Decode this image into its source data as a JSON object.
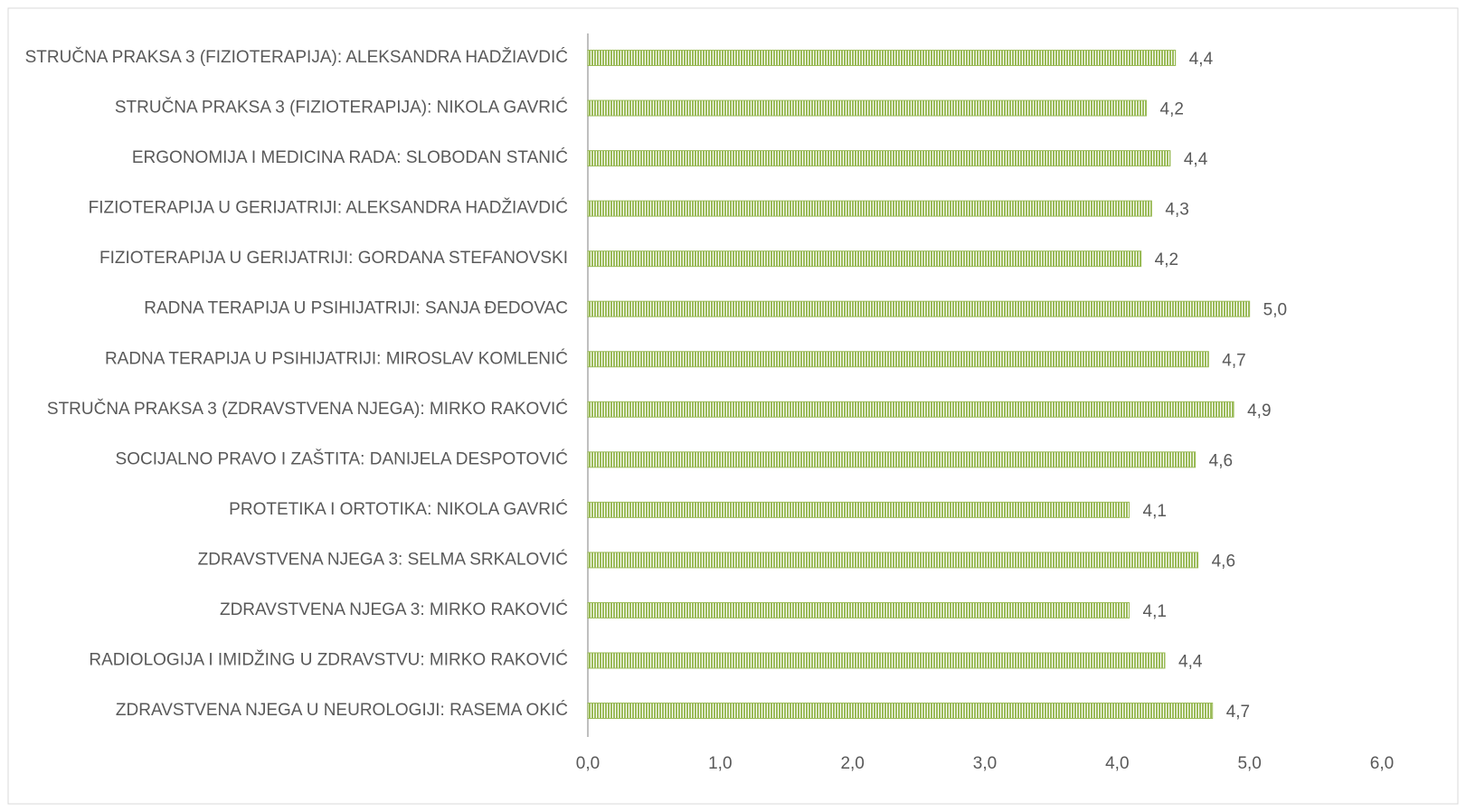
{
  "chart_data": {
    "type": "bar",
    "orientation": "horizontal",
    "categories": [
      "STRUČNA PRAKSA 3 (FIZIOTERAPIJA): ALEKSANDRA HADŽIAVDIĆ",
      "STRUČNA PRAKSA 3 (FIZIOTERAPIJA): NIKOLA GAVRIĆ",
      "ERGONOMIJA I MEDICINA RADA: SLOBODAN STANIĆ",
      "FIZIOTERAPIJA U GERIJATRIJI: ALEKSANDRA HADŽIAVDIĆ",
      "FIZIOTERAPIJA U GERIJATRIJI: GORDANA STEFANOVSKI",
      "RADNA TERAPIJA U PSIHIJATRIJI: SANJA ĐEDOVAC",
      "RADNA TERAPIJA U PSIHIJATRIJI: MIROSLAV KOMLENIĆ",
      "STRUČNA PRAKSA 3 (ZDRAVSTVENA NJEGA): MIRKO RAKOVIĆ",
      "SOCIJALNO PRAVO I ZAŠTITA: DANIJELA DESPOTOVIĆ",
      "PROTETIKA I ORTOTIKA: NIKOLA GAVRIĆ",
      "ZDRAVSTVENA NJEGA 3: SELMA SRKALOVIĆ",
      "ZDRAVSTVENA NJEGA 3: MIRKO RAKOVIĆ",
      "RADIOLOGIJA I IMIDŽING U ZDRAVSTVU: MIRKO RAKOVIĆ",
      "ZDRAVSTVENA NJEGA U NEUROLOGIJI: RASEMA OKIĆ"
    ],
    "values": [
      4.44,
      4.22,
      4.4,
      4.26,
      4.18,
      5.0,
      4.69,
      4.88,
      4.59,
      4.09,
      4.61,
      4.09,
      4.36,
      4.72
    ],
    "value_labels": [
      "4,4",
      "4,2",
      "4,4",
      "4,3",
      "4,2",
      "5,0",
      "4,7",
      "4,9",
      "4,6",
      "4,1",
      "4,6",
      "4,1",
      "4,4",
      "4,7"
    ],
    "color": "#9bbb59",
    "xlim": [
      0,
      6
    ],
    "xticks": [
      {
        "value": 0,
        "label": "0,0"
      },
      {
        "value": 1,
        "label": "1,0"
      },
      {
        "value": 2,
        "label": "2,0"
      },
      {
        "value": 3,
        "label": "3,0"
      },
      {
        "value": 4,
        "label": "4,0"
      },
      {
        "value": 5,
        "label": "5,0"
      },
      {
        "value": 6,
        "label": "6,0"
      }
    ]
  }
}
